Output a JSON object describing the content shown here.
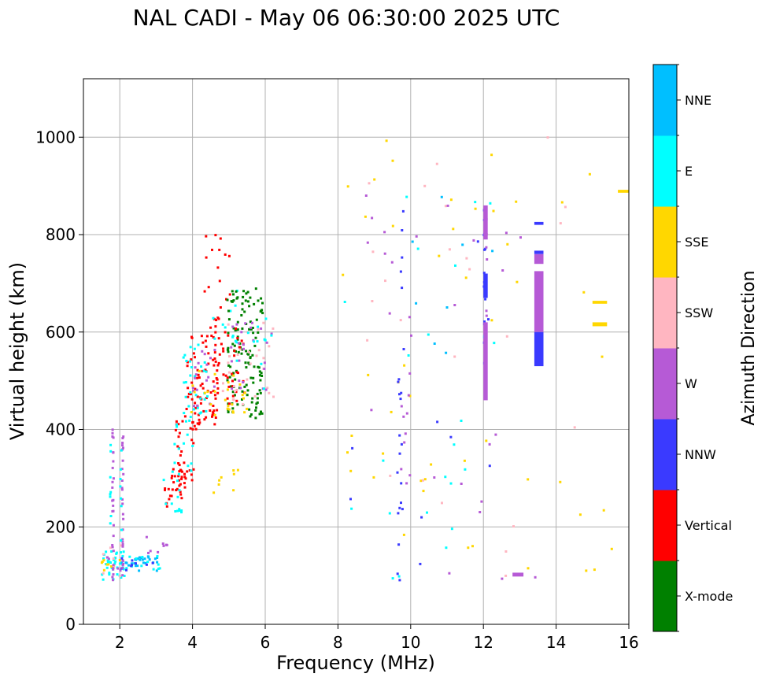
{
  "chart_data": {
    "type": "scatter",
    "title": "NAL CADI - May 06 06:30:00 2025 UTC",
    "xlabel": "Frequency (MHz)",
    "ylabel": "Virtual height (km)",
    "xlim": [
      1,
      16
    ],
    "ylim": [
      0,
      1120
    ],
    "xticks": [
      2,
      4,
      6,
      8,
      10,
      12,
      14,
      16
    ],
    "xtick_labels": [
      "2",
      "4",
      "6",
      "8",
      "10",
      "12",
      "14",
      "16"
    ],
    "yticks": [
      0,
      200,
      400,
      600,
      800,
      1000
    ],
    "ytick_labels": [
      "0",
      "200",
      "400",
      "600",
      "800",
      "1000"
    ],
    "grid": true,
    "colorbar": {
      "title": "Azimuth Direction",
      "categories": [
        {
          "name": "X-mode",
          "color": "#008000"
        },
        {
          "name": "Vertical",
          "color": "#ff0000"
        },
        {
          "name": "NNW",
          "color": "#3a3aff"
        },
        {
          "name": "W",
          "color": "#b65ad6"
        },
        {
          "name": "SSW",
          "color": "#ffb6c1"
        },
        {
          "name": "SSE",
          "color": "#ffd700"
        },
        {
          "name": "E",
          "color": "#00ffff"
        },
        {
          "name": "NNE",
          "color": "#00bfff"
        }
      ]
    },
    "clusters": [
      {
        "cat": 6,
        "fmin": 1.45,
        "fmax": 2.1,
        "hmin": 90,
        "hmax": 150,
        "n": 35
      },
      {
        "cat": 4,
        "fmin": 1.45,
        "fmax": 2.0,
        "hmin": 90,
        "hmax": 180,
        "n": 8
      },
      {
        "cat": 5,
        "fmin": 1.45,
        "fmax": 2.0,
        "hmin": 95,
        "hmax": 140,
        "n": 8
      },
      {
        "cat": 3,
        "fmin": 1.45,
        "fmax": 2.0,
        "hmin": 95,
        "hmax": 140,
        "n": 6
      },
      {
        "cat": 7,
        "fmin": 2.0,
        "fmax": 3.1,
        "hmin": 110,
        "hmax": 140,
        "n": 28
      },
      {
        "cat": 6,
        "fmin": 2.0,
        "fmax": 3.1,
        "hmin": 110,
        "hmax": 140,
        "n": 14
      },
      {
        "cat": 2,
        "fmin": 2.0,
        "fmax": 3.1,
        "hmin": 110,
        "hmax": 140,
        "n": 10
      },
      {
        "cat": 3,
        "fmin": 2.7,
        "fmax": 3.3,
        "hmin": 130,
        "hmax": 190,
        "n": 8
      },
      {
        "cat": 1,
        "fmin": 3.2,
        "fmax": 3.8,
        "hmin": 240,
        "hmax": 320,
        "n": 28
      },
      {
        "cat": 6,
        "fmin": 3.1,
        "fmax": 3.7,
        "hmin": 230,
        "hmax": 300,
        "n": 12
      },
      {
        "cat": 1,
        "fmin": 3.5,
        "fmax": 4.0,
        "hmin": 290,
        "hmax": 430,
        "n": 30
      },
      {
        "cat": 6,
        "fmin": 3.4,
        "fmax": 4.0,
        "hmin": 290,
        "hmax": 430,
        "n": 16
      },
      {
        "cat": 1,
        "fmin": 3.8,
        "fmax": 4.7,
        "hmin": 400,
        "hmax": 600,
        "n": 85
      },
      {
        "cat": 6,
        "fmin": 3.7,
        "fmax": 4.4,
        "hmin": 420,
        "hmax": 580,
        "n": 30
      },
      {
        "cat": 3,
        "fmin": 3.9,
        "fmax": 4.6,
        "hmin": 420,
        "hmax": 570,
        "n": 18
      },
      {
        "cat": 5,
        "fmin": 3.9,
        "fmax": 4.6,
        "hmin": 420,
        "hmax": 520,
        "n": 10
      },
      {
        "cat": 1,
        "fmin": 4.3,
        "fmax": 5.0,
        "hmin": 560,
        "hmax": 800,
        "n": 25
      },
      {
        "cat": 6,
        "fmin": 4.4,
        "fmax": 5.2,
        "hmin": 580,
        "hmax": 700,
        "n": 8
      },
      {
        "cat": 0,
        "fmin": 4.9,
        "fmax": 5.9,
        "hmin": 420,
        "hmax": 690,
        "n": 130
      },
      {
        "cat": 1,
        "fmin": 4.6,
        "fmax": 5.5,
        "hmin": 450,
        "hmax": 620,
        "n": 28
      },
      {
        "cat": 5,
        "fmin": 4.8,
        "fmax": 5.5,
        "hmin": 430,
        "hmax": 520,
        "n": 16
      },
      {
        "cat": 4,
        "fmin": 4.8,
        "fmax": 6.2,
        "hmin": 450,
        "hmax": 620,
        "n": 30
      },
      {
        "cat": 3,
        "fmin": 5.0,
        "fmax": 6.2,
        "hmin": 480,
        "hmax": 620,
        "n": 24
      },
      {
        "cat": 6,
        "fmin": 5.0,
        "fmax": 6.2,
        "hmin": 480,
        "hmax": 650,
        "n": 14
      },
      {
        "cat": 5,
        "fmin": 4.5,
        "fmax": 5.4,
        "hmin": 270,
        "hmax": 320,
        "n": 8
      },
      {
        "cat": 6,
        "fmin": 8.0,
        "fmax": 12.5,
        "hmin": 90,
        "hmax": 900,
        "n": 22
      },
      {
        "cat": 5,
        "fmin": 8.0,
        "fmax": 15.5,
        "hmin": 90,
        "hmax": 1000,
        "n": 50
      },
      {
        "cat": 4,
        "fmin": 8.0,
        "fmax": 14.5,
        "hmin": 90,
        "hmax": 1000,
        "n": 24
      },
      {
        "cat": 3,
        "fmin": 8.5,
        "fmax": 14.0,
        "hmin": 90,
        "hmax": 900,
        "n": 24
      },
      {
        "cat": 2,
        "fmin": 8.0,
        "fmax": 12.2,
        "hmin": 90,
        "hmax": 820,
        "n": 10
      },
      {
        "cat": 7,
        "fmin": 10.0,
        "fmax": 12.5,
        "hmin": 500,
        "hmax": 900,
        "n": 8
      },
      {
        "cat": 2,
        "fmin": 9.6,
        "fmax": 9.8,
        "hmin": 90,
        "hmax": 850,
        "n": 22
      },
      {
        "cat": 3,
        "fmin": 9.7,
        "fmax": 10.0,
        "hmin": 250,
        "hmax": 700,
        "n": 12
      }
    ],
    "stripes": [
      {
        "cat": 3,
        "f": 1.78,
        "hmin": 90,
        "hmax": 430,
        "n": 26
      },
      {
        "cat": 6,
        "f": 1.72,
        "hmin": 150,
        "hmax": 400,
        "n": 8
      },
      {
        "cat": 3,
        "f": 2.05,
        "hmin": 90,
        "hmax": 390,
        "n": 26
      },
      {
        "cat": 6,
        "f": 2.0,
        "hmin": 150,
        "hmax": 390,
        "n": 8
      },
      {
        "cat": 2,
        "f": 12.0,
        "hmin": 460,
        "hmax": 870,
        "n": 22
      },
      {
        "cat": 3,
        "f": 12.05,
        "hmin": 460,
        "hmax": 860,
        "n": 10
      },
      {
        "cat": 6,
        "f": 12.0,
        "hmin": 530,
        "hmax": 620,
        "n": 4
      }
    ],
    "bars": [
      {
        "cat": 3,
        "f0": 12.0,
        "f1": 12.12,
        "h0": 460,
        "h1": 620
      },
      {
        "cat": 3,
        "f0": 12.0,
        "f1": 12.12,
        "h0": 790,
        "h1": 860
      },
      {
        "cat": 2,
        "f0": 12.0,
        "f1": 12.12,
        "h0": 670,
        "h1": 720
      },
      {
        "cat": 3,
        "f0": 13.4,
        "f1": 13.65,
        "h0": 600,
        "h1": 725
      },
      {
        "cat": 2,
        "f0": 13.4,
        "f1": 13.65,
        "h0": 530,
        "h1": 600
      },
      {
        "cat": 3,
        "f0": 13.4,
        "f1": 13.65,
        "h0": 740,
        "h1": 760
      },
      {
        "cat": 2,
        "f0": 13.4,
        "f1": 13.65,
        "h0": 760,
        "h1": 767
      },
      {
        "cat": 2,
        "f0": 13.4,
        "f1": 13.65,
        "h0": 820,
        "h1": 826
      },
      {
        "cat": 3,
        "f0": 12.8,
        "f1": 13.1,
        "h0": 98,
        "h1": 106
      },
      {
        "cat": 5,
        "f0": 15.0,
        "f1": 15.4,
        "h0": 612,
        "h1": 620
      },
      {
        "cat": 5,
        "f0": 15.0,
        "f1": 15.4,
        "h0": 658,
        "h1": 664
      },
      {
        "cat": 5,
        "f0": 15.7,
        "f1": 16.0,
        "h0": 886,
        "h1": 892
      }
    ]
  }
}
